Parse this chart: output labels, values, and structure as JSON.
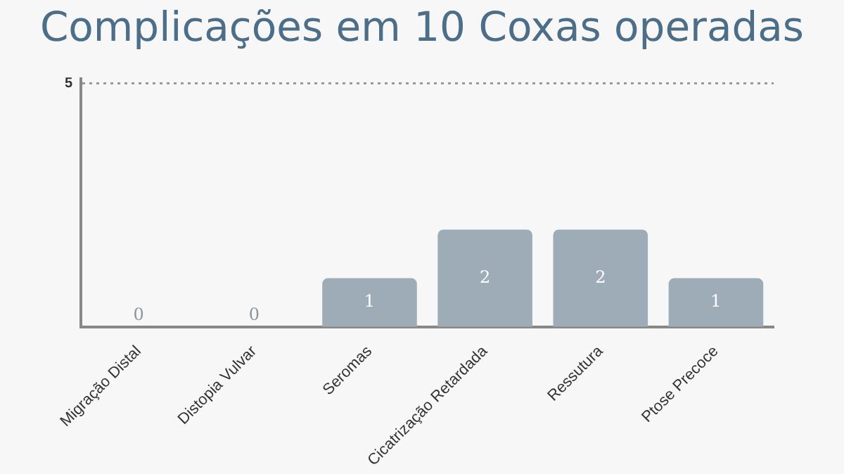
{
  "chart_data": {
    "type": "bar",
    "title": "Complicações em 10 Coxas operadas",
    "categories": [
      "Migração Distal",
      "Distopia Vulvar",
      "Seromas",
      "Cicatrização Retardada",
      "Ressutura",
      "Ptose Precoce"
    ],
    "values": [
      0,
      0,
      1,
      2,
      2,
      1
    ],
    "color": "#9eacb8",
    "ylim": [
      0,
      5.1
    ],
    "yticks": [
      5
    ],
    "grid": "y",
    "data_labels": true,
    "legend": false
  }
}
